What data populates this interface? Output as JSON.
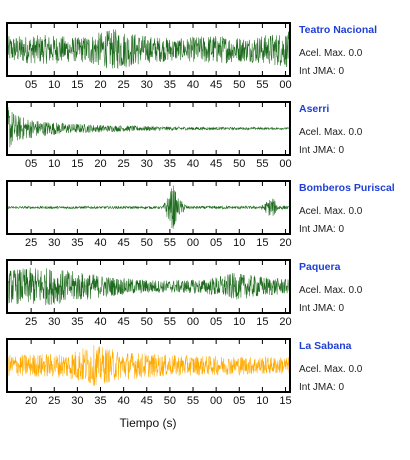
{
  "xaxis_title": "Tiempo (s)",
  "stations": [
    {
      "name": "Teatro Nacional",
      "peak_label": "Acel. Max. 0.0",
      "jma_label": "Int JMA: 0",
      "trace_color": "#1e6b1e",
      "tick_labels": [
        "05",
        "10",
        "15",
        "20",
        "25",
        "30",
        "35",
        "40",
        "45",
        "50",
        "55",
        "00"
      ],
      "trace_profile": [
        [
          0,
          0.55
        ],
        [
          0.15,
          0.6
        ],
        [
          0.25,
          0.5
        ],
        [
          0.38,
          0.85
        ],
        [
          0.5,
          0.55
        ],
        [
          0.62,
          0.45
        ],
        [
          0.72,
          0.6
        ],
        [
          0.85,
          0.5
        ],
        [
          1,
          0.75
        ]
      ]
    },
    {
      "name": "Aserri",
      "peak_label": "Acel. Max. 0.0",
      "jma_label": "Int JMA: 0",
      "trace_color": "#1e6b1e",
      "tick_labels": [
        "05",
        "10",
        "15",
        "20",
        "25",
        "30",
        "35",
        "40",
        "45",
        "50",
        "55",
        "00"
      ],
      "trace_profile": [
        [
          0,
          0.95
        ],
        [
          0.03,
          0.55
        ],
        [
          0.1,
          0.35
        ],
        [
          0.2,
          0.22
        ],
        [
          0.35,
          0.14
        ],
        [
          0.55,
          0.08
        ],
        [
          0.8,
          0.05
        ],
        [
          1,
          0.04
        ]
      ]
    },
    {
      "name": "Bomberos Puriscal",
      "peak_label": "Acel. Max. 0.0",
      "jma_label": "Int JMA: 0",
      "trace_color": "#1e6b1e",
      "tick_labels": [
        "25",
        "30",
        "35",
        "40",
        "45",
        "50",
        "55",
        "00",
        "05",
        "10",
        "15",
        "20"
      ],
      "trace_profile": [
        [
          0,
          0.05
        ],
        [
          0.55,
          0.05
        ],
        [
          0.59,
          1.0
        ],
        [
          0.6,
          0.45
        ],
        [
          0.64,
          0.06
        ],
        [
          0.9,
          0.06
        ],
        [
          0.94,
          0.45
        ],
        [
          0.96,
          0.12
        ],
        [
          1,
          0.05
        ]
      ]
    },
    {
      "name": "Paquera",
      "peak_label": "Acel. Max. 0.0",
      "jma_label": "Int JMA: 0",
      "trace_color": "#1e6b1e",
      "tick_labels": [
        "25",
        "30",
        "35",
        "40",
        "45",
        "50",
        "55",
        "00",
        "05",
        "10",
        "15",
        "20"
      ],
      "trace_profile": [
        [
          0,
          0.7
        ],
        [
          0.12,
          0.8
        ],
        [
          0.25,
          0.6
        ],
        [
          0.4,
          0.35
        ],
        [
          0.55,
          0.25
        ],
        [
          0.7,
          0.3
        ],
        [
          0.8,
          0.55
        ],
        [
          0.88,
          0.45
        ],
        [
          1,
          0.3
        ]
      ]
    },
    {
      "name": "La Sabana",
      "peak_label": "Acel. Max. 0.0",
      "jma_label": "Int JMA: 0",
      "trace_color": "#ffaa00",
      "tick_labels": [
        "20",
        "25",
        "30",
        "35",
        "40",
        "45",
        "50",
        "55",
        "00",
        "05",
        "10",
        "15"
      ],
      "trace_profile": [
        [
          0,
          0.45
        ],
        [
          0.2,
          0.5
        ],
        [
          0.3,
          0.85
        ],
        [
          0.4,
          0.6
        ],
        [
          0.55,
          0.45
        ],
        [
          0.7,
          0.4
        ],
        [
          0.85,
          0.38
        ],
        [
          1,
          0.35
        ]
      ]
    }
  ]
}
